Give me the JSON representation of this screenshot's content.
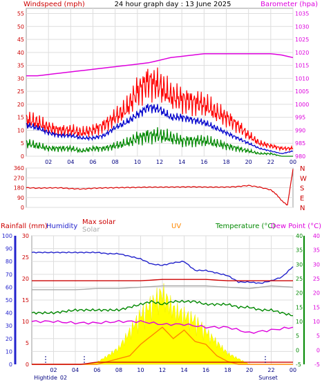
{
  "chart_data": [
    {
      "type": "line",
      "title": "24 hour graph day : 13 June 2025",
      "ylabel_left": "Windspeed (mph)",
      "ylabel_right": "Barometer (hpa)",
      "x_ticks": [
        "02",
        "04",
        "06",
        "08",
        "10",
        "12",
        "14",
        "16",
        "18",
        "20",
        "22",
        "00"
      ],
      "y_left_ticks": [
        "0",
        "5",
        "10",
        "15",
        "20",
        "25",
        "30",
        "35",
        "40",
        "45",
        "50",
        "55"
      ],
      "y_right_ticks": [
        "980",
        "985",
        "990",
        "995",
        "1000",
        "1005",
        "1010",
        "1015",
        "1020",
        "1025",
        "1030",
        "1035"
      ],
      "ylim_left": [
        0,
        57
      ],
      "ylim_right": [
        980,
        1037
      ],
      "grid": true,
      "series": [
        {
          "name": "",
          "color": "#ff0000",
          "axis": "left",
          "x": [
            0,
            1,
            2,
            3,
            4,
            5,
            6,
            7,
            8,
            9,
            10,
            11,
            12,
            13,
            14,
            15,
            16,
            17,
            18,
            19,
            20,
            21,
            22,
            23,
            24
          ],
          "values": [
            14,
            13,
            11,
            10,
            10,
            9,
            10,
            12,
            15,
            18,
            25,
            29,
            27,
            23,
            22,
            21,
            20,
            17,
            15,
            12,
            8,
            5,
            4,
            3,
            3
          ]
        },
        {
          "name": "",
          "color": "#0000cc",
          "axis": "left",
          "x": [
            0,
            1,
            2,
            3,
            4,
            5,
            6,
            7,
            8,
            9,
            10,
            11,
            12,
            13,
            14,
            15,
            16,
            17,
            18,
            19,
            20,
            21,
            22,
            23,
            24
          ],
          "values": [
            12,
            11,
            9,
            8,
            8,
            7,
            7,
            8,
            11,
            13,
            16,
            19,
            18,
            15,
            15,
            14,
            13,
            11,
            9,
            7,
            5,
            3,
            2,
            1,
            2
          ]
        },
        {
          "name": "",
          "color": "#008800",
          "axis": "left",
          "x": [
            0,
            1,
            2,
            3,
            4,
            5,
            6,
            7,
            8,
            9,
            10,
            11,
            12,
            13,
            14,
            15,
            16,
            17,
            18,
            19,
            20,
            21,
            22,
            23,
            24
          ],
          "values": [
            5,
            4,
            3,
            3,
            3,
            2,
            3,
            3,
            4,
            5,
            7,
            8,
            8,
            7,
            6,
            6,
            6,
            5,
            4,
            3,
            2,
            1,
            1,
            0,
            0
          ]
        },
        {
          "name": "",
          "color": "#dd00dd",
          "axis": "right",
          "x": [
            0,
            1,
            2,
            3,
            4,
            5,
            6,
            7,
            8,
            9,
            10,
            11,
            12,
            13,
            14,
            15,
            16,
            17,
            18,
            19,
            20,
            21,
            22,
            23,
            24
          ],
          "values": [
            1011,
            1011,
            1011.5,
            1012,
            1012.5,
            1013,
            1013.5,
            1014,
            1014.5,
            1015,
            1015.5,
            1016,
            1017,
            1018,
            1018.5,
            1019,
            1019.5,
            1019.5,
            1019.5,
            1019.5,
            1019.5,
            1019.5,
            1019.5,
            1019,
            1018
          ]
        }
      ]
    },
    {
      "type": "line",
      "title": "",
      "y_ticks": [
        "0",
        "90",
        "180",
        "270",
        "360"
      ],
      "right_labels": [
        "N",
        "W",
        "S",
        "E",
        "N"
      ],
      "ylim": [
        0,
        360
      ],
      "series": [
        {
          "name": "",
          "color": "#dd0000",
          "x": [
            0,
            1,
            2,
            3,
            4,
            5,
            6,
            7,
            8,
            9,
            10,
            11,
            12,
            13,
            14,
            15,
            16,
            17,
            18,
            19,
            20,
            21,
            22,
            22.5,
            23,
            23.5,
            24
          ],
          "values": [
            180,
            176,
            178,
            179,
            172,
            168,
            175,
            178,
            180,
            182,
            183,
            185,
            185,
            186,
            187,
            188,
            186,
            185,
            186,
            190,
            200,
            185,
            160,
            120,
            60,
            20,
            350
          ]
        }
      ]
    },
    {
      "type": "line",
      "title": "",
      "labels": {
        "rainfall": "Rainfall (mm)",
        "humidity": "Humidity",
        "max_solar": "Max solar",
        "solar": "Solar",
        "uv": "UV",
        "temperature": "Temperature (°C)",
        "dew_point": "Dew Point (°C)"
      },
      "humidity_ticks": [
        "0",
        "10",
        "20",
        "30",
        "40",
        "50",
        "60",
        "70",
        "80",
        "90",
        "100"
      ],
      "rain_ticks": [
        "0",
        "5",
        "10",
        "15",
        "20",
        "25",
        "30"
      ],
      "temp_ticks_left": [
        "-5",
        "0",
        "5",
        "10",
        "15",
        "20",
        "25",
        "30",
        "35",
        "40"
      ],
      "temp_ticks_right": [
        "-5",
        "0",
        "5",
        "10",
        "15",
        "20",
        "25",
        "30",
        "35",
        "40"
      ],
      "x_ticks": [
        "02",
        "04",
        "06",
        "08",
        "10",
        "12",
        "14",
        "16",
        "18",
        "20",
        "22",
        "00"
      ],
      "ylim_humidity": [
        0,
        100
      ],
      "ylim_temp": [
        -5,
        40
      ],
      "bottom_labels": [
        "Hightide",
        "02",
        "Sunset"
      ],
      "series": [
        {
          "name": "Humidity",
          "color": "#2222cc",
          "unit": "%",
          "x": [
            0,
            1,
            2,
            3,
            4,
            5,
            6,
            7,
            8,
            9,
            10,
            11,
            12,
            13,
            14,
            15,
            16,
            17,
            18,
            19,
            20,
            21,
            22,
            23,
            24
          ],
          "values": [
            87,
            87,
            87,
            87,
            87,
            87,
            87,
            86,
            86,
            84,
            82,
            78,
            77,
            79,
            80,
            73,
            73,
            71,
            69,
            64,
            64,
            63,
            65,
            68,
            76
          ]
        },
        {
          "name": "Max solar",
          "color": "#cc0000",
          "unit": "%",
          "x": [
            0,
            6,
            8,
            10,
            12,
            14,
            16,
            18,
            20,
            22,
            24
          ],
          "values": [
            65,
            65,
            65,
            65,
            66,
            66,
            66,
            65,
            65,
            65,
            65
          ]
        },
        {
          "name": "Solar",
          "color": "#aaaaaa",
          "unit": "%",
          "x": [
            0,
            2,
            4,
            6,
            8,
            10,
            12,
            14,
            16,
            18,
            20,
            22,
            24
          ],
          "values": [
            58,
            58,
            58,
            59,
            59,
            60,
            61,
            61,
            61,
            60,
            59,
            61,
            60
          ]
        },
        {
          "name": "Temperature",
          "color": "#008800",
          "unit": "°C",
          "x": [
            0,
            1,
            2,
            3,
            4,
            5,
            6,
            7,
            8,
            9,
            10,
            11,
            12,
            13,
            14,
            15,
            16,
            17,
            18,
            19,
            20,
            21,
            22,
            23,
            24
          ],
          "values": [
            13,
            13,
            13,
            13.5,
            14,
            14,
            14,
            14,
            14,
            15,
            16,
            17,
            16,
            17,
            17,
            17,
            16,
            16,
            16,
            15,
            15,
            14,
            14,
            13,
            12
          ]
        },
        {
          "name": "Dew Point",
          "color": "#dd00dd",
          "unit": "°C",
          "x": [
            0,
            2,
            4,
            6,
            8,
            10,
            12,
            14,
            16,
            18,
            20,
            22,
            24
          ],
          "values": [
            10,
            10,
            9.5,
            9.5,
            10,
            10,
            9,
            9,
            8,
            8,
            6,
            7,
            8
          ]
        },
        {
          "name": "UV",
          "color": "#ff8800",
          "unit": "°C",
          "x": [
            0,
            5,
            6,
            7,
            8,
            9,
            10,
            11,
            12,
            13,
            14,
            15,
            16,
            17,
            18,
            19,
            20,
            24
          ],
          "values": [
            -5,
            -5,
            -5,
            -4,
            -3,
            -2,
            2,
            5,
            8,
            4,
            7,
            3,
            2,
            -2,
            -4,
            -5,
            -5,
            -5
          ]
        },
        {
          "name": "Rainfall",
          "color": "#cc0000",
          "unit": "mm",
          "x": [
            0,
            4.5,
            6,
            24
          ],
          "values": [
            0,
            0,
            0.5,
            0.5
          ]
        }
      ],
      "solar_area": {
        "color": "#ffff00",
        "x": [
          5,
          6,
          7,
          8,
          9,
          10,
          11,
          12,
          13,
          14,
          15,
          16,
          17,
          18,
          19,
          20
        ],
        "values": [
          0,
          2,
          8,
          15,
          30,
          45,
          55,
          65,
          50,
          45,
          40,
          30,
          20,
          10,
          5,
          0
        ]
      }
    }
  ]
}
